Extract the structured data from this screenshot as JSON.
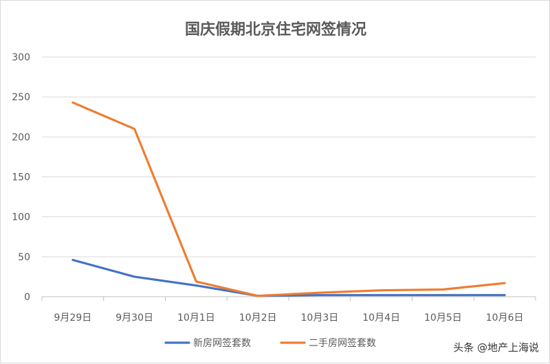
{
  "chart_data": {
    "type": "line",
    "title": "国庆假期北京住宅网签情况",
    "xlabel": "",
    "ylabel": "",
    "categories": [
      "9月29日",
      "9月30日",
      "10月1日",
      "10月2日",
      "10月3日",
      "10月4日",
      "10月5日",
      "10月6日"
    ],
    "ylim": [
      0,
      300
    ],
    "yticks": [
      0,
      50,
      100,
      150,
      200,
      250,
      300
    ],
    "grid": true,
    "legend_position": "bottom",
    "series": [
      {
        "name": "新房网签套数",
        "color": "#4472C4",
        "values": [
          46,
          25,
          14,
          1,
          2,
          2,
          2,
          2
        ]
      },
      {
        "name": "二手房网签套数",
        "color": "#ED7D31",
        "values": [
          243,
          210,
          19,
          1,
          5,
          8,
          9,
          17
        ]
      }
    ]
  },
  "watermark": "头条 @地产上海说"
}
